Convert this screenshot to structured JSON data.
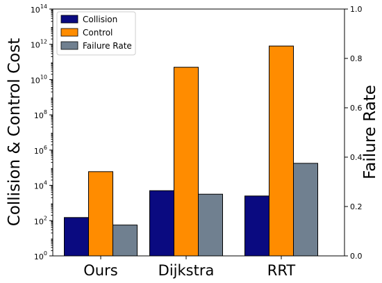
{
  "chart_data": {
    "type": "bar",
    "categories": [
      "Ours",
      "Dijkstra",
      "RRT"
    ],
    "series": [
      {
        "name": "Collision",
        "axis": "left",
        "color": "#0a0a80",
        "values": [
          150,
          5000,
          2500
        ]
      },
      {
        "name": "Control",
        "axis": "left",
        "color": "#ff8c00",
        "values": [
          60000,
          50000000000,
          800000000000
        ]
      },
      {
        "name": "Failure Rate",
        "axis": "right",
        "color": "#708090",
        "values": [
          0.125,
          0.25,
          0.375
        ]
      }
    ],
    "ylabel": "Collision & Control Cost",
    "y2label": "Failure Rate",
    "yscale": "log",
    "ylim": [
      1,
      100000000000000
    ],
    "y2lim": [
      0,
      1.0
    ],
    "yticks": [
      {
        "base": "10",
        "exp": "0"
      },
      {
        "base": "10",
        "exp": "2"
      },
      {
        "base": "10",
        "exp": "4"
      },
      {
        "base": "10",
        "exp": "6"
      },
      {
        "base": "10",
        "exp": "8"
      },
      {
        "base": "10",
        "exp": "10"
      },
      {
        "base": "10",
        "exp": "12"
      },
      {
        "base": "10",
        "exp": "14"
      }
    ],
    "y2ticks": [
      "0.0",
      "0.2",
      "0.4",
      "0.6",
      "0.8",
      "1.0"
    ],
    "legend": {
      "placement": "top-left",
      "labels": [
        "Collision",
        "Control",
        "Failure Rate"
      ]
    },
    "grid": false
  }
}
